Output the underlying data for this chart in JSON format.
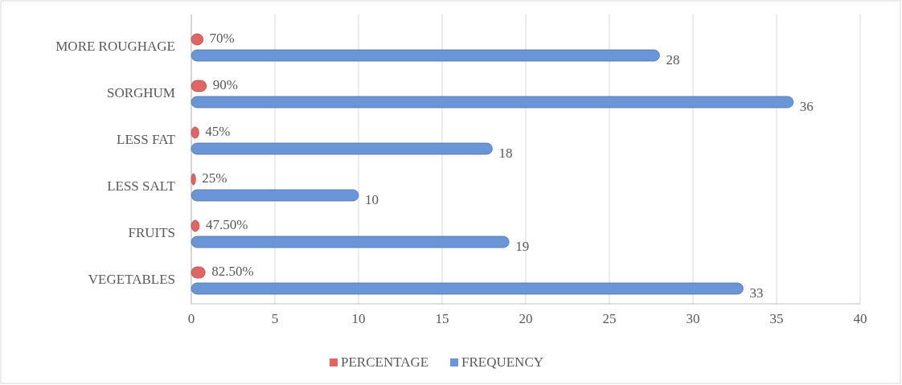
{
  "chart_data": {
    "type": "bar",
    "orientation": "horizontal",
    "categories": [
      "MORE ROUGHAGE",
      "SORGHUM",
      "LESS FAT",
      "LESS SALT",
      "FRUITS",
      "VEGETABLES"
    ],
    "series": [
      {
        "name": "PERCENTAGE",
        "color": "#e06666",
        "values": [
          0.7,
          0.9,
          0.45,
          0.25,
          0.475,
          0.825
        ],
        "value_labels": [
          "70%",
          "90%",
          "45%",
          "25%",
          "47.50%",
          "82.50%"
        ]
      },
      {
        "name": "FREQUENCY",
        "color": "#6a96d8",
        "values": [
          28,
          36,
          18,
          10,
          19,
          33
        ],
        "value_labels": [
          "28",
          "36",
          "18",
          "10",
          "19",
          "33"
        ]
      }
    ],
    "xlim": [
      0,
      40
    ],
    "xticks": [
      0,
      5,
      10,
      15,
      20,
      25,
      30,
      35,
      40
    ],
    "grid": "x",
    "legend": "bottom"
  }
}
